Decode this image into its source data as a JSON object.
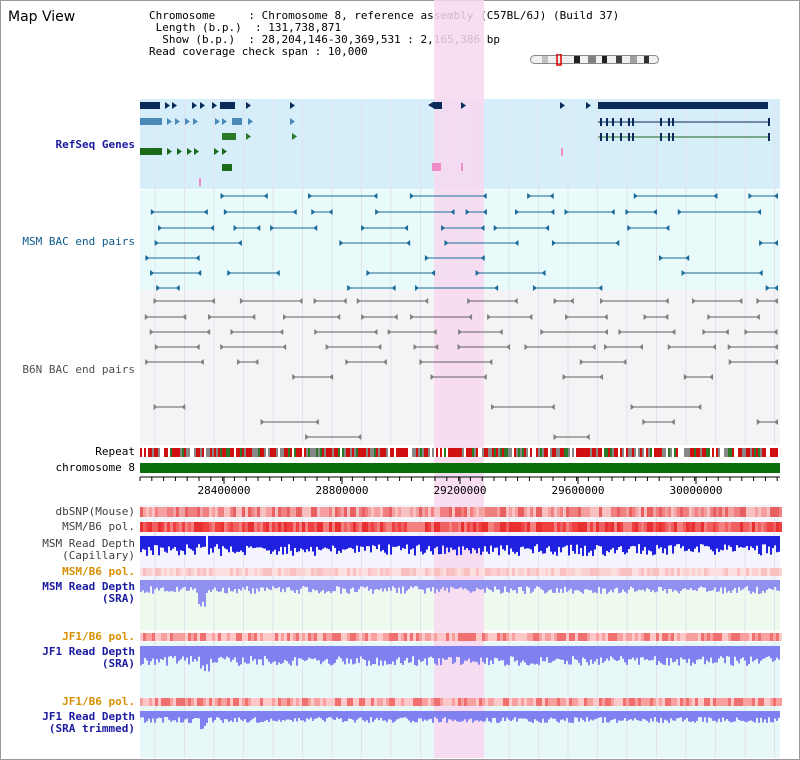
{
  "window": {
    "title": "Map View"
  },
  "info": {
    "chromosome_label": "Chromosome",
    "chromosome_value": "Chromosome 8, reference assembly (C57BL/6J) (Build 37)",
    "length_label": "Length (b.p.)",
    "length_value": "131,738,871",
    "show_label": "Show (b.p.)",
    "show_value": "28,204,146-30,369,531 : 2,165,386 bp",
    "coverage_label": "Read coverage check span",
    "coverage_value": "10,000"
  },
  "tracks": {
    "refseq": "RefSeq Genes",
    "msm_bac": "MSM BAC end pairs",
    "b6n_bac": "B6N BAC end pairs",
    "repeat": "Repeat",
    "chromosome": "chromosome 8",
    "dbsnp": "dbSNP(Mouse)",
    "msm_b6_pol": "MSM/B6 pol.",
    "msm_read_depth_cap_1": "MSM Read Depth",
    "msm_read_depth_cap_2": "(Capillary)",
    "msm_b6_pol2": "MSM/B6 pol.",
    "msm_read_depth_sra_1": "MSM Read Depth",
    "msm_read_depth_sra_2": "(SRA)",
    "jf1_b6_pol": "JF1/B6 pol.",
    "jf1_read_depth_sra_1": "JF1 Read Depth",
    "jf1_read_depth_sra_2": "(SRA)",
    "jf1_b6_pol2": "JF1/B6 pol.",
    "jf1_read_depth_trim_1": "JF1 Read Depth",
    "jf1_read_depth_trim_2": "(SRA trimmed)"
  },
  "axis": {
    "ticks": [
      "28400000",
      "28800000",
      "29200000",
      "29600000",
      "30000000"
    ]
  },
  "colors": {
    "refseq_bg": "#d6eefa",
    "msm_bg": "#e8fafa",
    "b6n_bg": "#f4f4f7",
    "highlight": "#f8d8f0",
    "chromosome": "#0a6e0a",
    "read_depth_blue": "#2020e0",
    "light_blue": "#8080f0"
  }
}
